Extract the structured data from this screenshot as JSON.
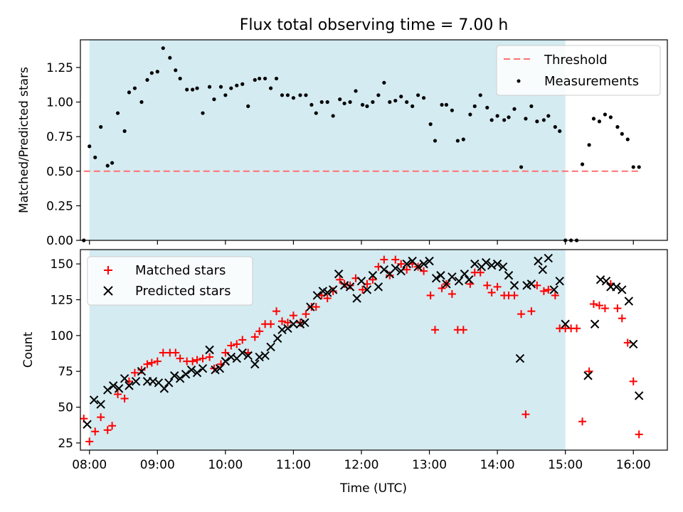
{
  "chart_data": [
    {
      "type": "scatter",
      "title": "Flux total observing time = 7.00 h",
      "ylabel": "Matched/Predicted stars",
      "xlabel": "",
      "xlim": [
        "07:52",
        "16:30"
      ],
      "ylim": [
        0,
        1.45
      ],
      "x_ticks": [
        "08:00",
        "09:00",
        "10:00",
        "11:00",
        "12:00",
        "13:00",
        "14:00",
        "15:00",
        "16:00"
      ],
      "y_ticks": [
        "0.00",
        "0.25",
        "0.50",
        "0.75",
        "1.00",
        "1.25"
      ],
      "shaded_region": [
        "08:00",
        "15:00"
      ],
      "threshold": {
        "value": 0.5,
        "x_range": [
          "07:55",
          "16:05"
        ],
        "color": "#ff7070"
      },
      "legend": {
        "placement": "top-right",
        "entries": [
          "Threshold",
          "Measurements"
        ]
      },
      "series": [
        {
          "name": "Measurements",
          "color": "#000000",
          "x": [
            "07:55",
            "08:00",
            "08:05",
            "08:10",
            "08:16",
            "08:20",
            "08:25",
            "08:31",
            "08:35",
            "08:40",
            "08:46",
            "08:51",
            "08:55",
            "09:00",
            "09:05",
            "09:11",
            "09:16",
            "09:20",
            "09:26",
            "09:31",
            "09:35",
            "09:40",
            "09:46",
            "09:50",
            "09:56",
            "10:00",
            "10:05",
            "10:10",
            "10:15",
            "10:20",
            "10:26",
            "10:30",
            "10:35",
            "10:40",
            "10:45",
            "10:50",
            "10:55",
            "11:00",
            "11:06",
            "11:11",
            "11:16",
            "11:20",
            "11:25",
            "11:30",
            "11:35",
            "11:41",
            "11:45",
            "11:50",
            "11:55",
            "12:01",
            "12:05",
            "12:10",
            "12:15",
            "12:20",
            "12:25",
            "12:30",
            "12:35",
            "12:40",
            "12:45",
            "12:50",
            "12:55",
            "13:01",
            "13:05",
            "13:11",
            "13:15",
            "13:20",
            "13:25",
            "13:30",
            "13:36",
            "13:40",
            "13:45",
            "13:51",
            "13:55",
            "14:00",
            "14:06",
            "14:10",
            "14:15",
            "14:21",
            "14:25",
            "14:30",
            "14:35",
            "14:41",
            "14:45",
            "14:51",
            "14:55",
            "15:00",
            "15:05",
            "15:10",
            "15:15",
            "15:21",
            "15:25",
            "15:30",
            "15:35",
            "15:40",
            "15:46",
            "15:50",
            "15:55",
            "16:00",
            "16:05"
          ],
          "values": [
            0.0,
            0.68,
            0.6,
            0.82,
            0.54,
            0.56,
            0.92,
            0.79,
            1.07,
            1.1,
            1.0,
            1.16,
            1.21,
            1.22,
            1.39,
            1.32,
            1.23,
            1.17,
            1.09,
            1.09,
            1.1,
            0.92,
            1.11,
            1.02,
            1.11,
            1.05,
            1.1,
            1.12,
            1.13,
            0.97,
            1.16,
            1.17,
            1.17,
            1.1,
            1.17,
            1.05,
            1.05,
            1.03,
            1.05,
            1.05,
            0.98,
            0.92,
            1.0,
            1.0,
            0.9,
            1.02,
            0.99,
            1.0,
            1.08,
            0.98,
            0.97,
            1.0,
            1.05,
            1.14,
            1.0,
            1.01,
            1.04,
            1.0,
            0.97,
            1.05,
            1.03,
            0.84,
            0.72,
            0.98,
            0.98,
            0.94,
            0.72,
            0.73,
            0.91,
            0.97,
            1.05,
            0.96,
            0.87,
            0.9,
            0.87,
            0.89,
            0.95,
            0.53,
            0.88,
            0.97,
            0.86,
            0.87,
            0.9,
            0.82,
            0.79,
            0.0,
            0.0,
            0.0,
            0.55,
            0.69,
            0.88,
            0.86,
            0.91,
            0.89,
            0.82,
            0.77,
            0.73,
            0.53,
            0.53
          ]
        }
      ]
    },
    {
      "type": "scatter",
      "title": "",
      "ylabel": "Count",
      "xlabel": "Time (UTC)",
      "xlim": [
        "07:52",
        "16:30"
      ],
      "ylim": [
        20,
        160
      ],
      "x_ticks": [
        "08:00",
        "09:00",
        "10:00",
        "11:00",
        "12:00",
        "13:00",
        "14:00",
        "15:00",
        "16:00"
      ],
      "y_ticks": [
        "25",
        "50",
        "75",
        "100",
        "125",
        "150"
      ],
      "shaded_region": [
        "08:00",
        "15:00"
      ],
      "legend": {
        "placement": "top-left",
        "entries": [
          "Matched stars",
          "Predicted stars"
        ]
      },
      "series": [
        {
          "name": "Matched stars",
          "marker": "plus",
          "color": "#ff0000",
          "x": [
            "07:55",
            "08:00",
            "08:05",
            "08:10",
            "08:16",
            "08:20",
            "08:25",
            "08:31",
            "08:35",
            "08:40",
            "08:46",
            "08:51",
            "08:55",
            "09:00",
            "09:05",
            "09:11",
            "09:16",
            "09:20",
            "09:26",
            "09:31",
            "09:35",
            "09:40",
            "09:46",
            "09:50",
            "09:56",
            "10:00",
            "10:05",
            "10:10",
            "10:15",
            "10:20",
            "10:26",
            "10:30",
            "10:35",
            "10:40",
            "10:45",
            "10:50",
            "10:55",
            "11:00",
            "11:06",
            "11:11",
            "11:16",
            "11:20",
            "11:25",
            "11:30",
            "11:35",
            "11:41",
            "11:45",
            "11:50",
            "11:55",
            "12:01",
            "12:05",
            "12:10",
            "12:15",
            "12:20",
            "12:25",
            "12:30",
            "12:35",
            "12:40",
            "12:45",
            "12:50",
            "12:55",
            "13:01",
            "13:05",
            "13:11",
            "13:15",
            "13:20",
            "13:25",
            "13:30",
            "13:36",
            "13:40",
            "13:45",
            "13:51",
            "13:55",
            "14:00",
            "14:06",
            "14:10",
            "14:15",
            "14:21",
            "14:25",
            "14:30",
            "14:35",
            "14:41",
            "14:45",
            "14:51",
            "14:55",
            "15:00",
            "15:05",
            "15:10",
            "15:15",
            "15:21",
            "15:25",
            "15:30",
            "15:35",
            "15:40",
            "15:46",
            "15:50",
            "15:55",
            "16:00",
            "16:05"
          ],
          "values": [
            42,
            26,
            33,
            43,
            34,
            37,
            59,
            56,
            68,
            74,
            76,
            80,
            81,
            82,
            88,
            88,
            88,
            84,
            82,
            82,
            83,
            84,
            85,
            77,
            80,
            88,
            93,
            94,
            97,
            88,
            99,
            103,
            108,
            108,
            117,
            110,
            109,
            114,
            109,
            115,
            120,
            120,
            128,
            126,
            131,
            139,
            136,
            135,
            140,
            132,
            136,
            139,
            148,
            153,
            142,
            153,
            150,
            146,
            150,
            148,
            145,
            128,
            104,
            133,
            136,
            129,
            104,
            104,
            136,
            144,
            144,
            135,
            130,
            134,
            128,
            128,
            128,
            115,
            45,
            117,
            135,
            131,
            132,
            128,
            105,
            105,
            105,
            105,
            40,
            75,
            122,
            121,
            119,
            136,
            119,
            112,
            95,
            68,
            31
          ]
        },
        {
          "name": "Predicted stars",
          "marker": "x",
          "color": "#000000",
          "x": [
            "07:58",
            "08:04",
            "08:10",
            "08:16",
            "08:21",
            "08:26",
            "08:31",
            "08:35",
            "08:41",
            "08:46",
            "08:51",
            "08:56",
            "09:01",
            "09:06",
            "09:10",
            "09:15",
            "09:20",
            "09:25",
            "09:30",
            "09:35",
            "09:40",
            "09:46",
            "09:51",
            "09:55",
            "10:00",
            "10:05",
            "10:10",
            "10:15",
            "10:20",
            "10:26",
            "10:30",
            "10:35",
            "10:40",
            "10:46",
            "10:50",
            "10:55",
            "11:00",
            "11:06",
            "11:10",
            "11:15",
            "11:21",
            "11:26",
            "11:30",
            "11:35",
            "11:40",
            "11:45",
            "11:50",
            "11:56",
            "12:00",
            "12:05",
            "12:10",
            "12:15",
            "12:20",
            "12:25",
            "12:30",
            "12:35",
            "12:40",
            "12:45",
            "12:50",
            "12:55",
            "13:00",
            "13:06",
            "13:10",
            "13:15",
            "13:20",
            "13:26",
            "13:31",
            "13:35",
            "13:40",
            "13:46",
            "13:50",
            "13:55",
            "14:00",
            "14:05",
            "14:10",
            "14:15",
            "14:20",
            "14:26",
            "14:30",
            "14:36",
            "14:40",
            "14:45",
            "14:50",
            "14:55",
            "15:00",
            "15:20",
            "15:26",
            "15:31",
            "15:36",
            "15:40",
            "15:45",
            "15:50",
            "15:56",
            "16:00",
            "16:05"
          ],
          "values": [
            38,
            55,
            52,
            62,
            65,
            63,
            70,
            65,
            68,
            75,
            68,
            68,
            67,
            63,
            67,
            72,
            70,
            73,
            76,
            74,
            77,
            90,
            76,
            77,
            82,
            85,
            84,
            88,
            86,
            80,
            85,
            86,
            92,
            98,
            104,
            105,
            108,
            108,
            109,
            120,
            128,
            131,
            130,
            132,
            143,
            135,
            134,
            126,
            138,
            132,
            142,
            134,
            146,
            143,
            147,
            145,
            150,
            152,
            148,
            150,
            152,
            140,
            142,
            136,
            141,
            138,
            143,
            139,
            150,
            148,
            151,
            149,
            150,
            148,
            142,
            135,
            84,
            135,
            136,
            152,
            146,
            154,
            132,
            138,
            108,
            72,
            108,
            139,
            138,
            134,
            134,
            132,
            124,
            94,
            58
          ]
        }
      ]
    }
  ]
}
